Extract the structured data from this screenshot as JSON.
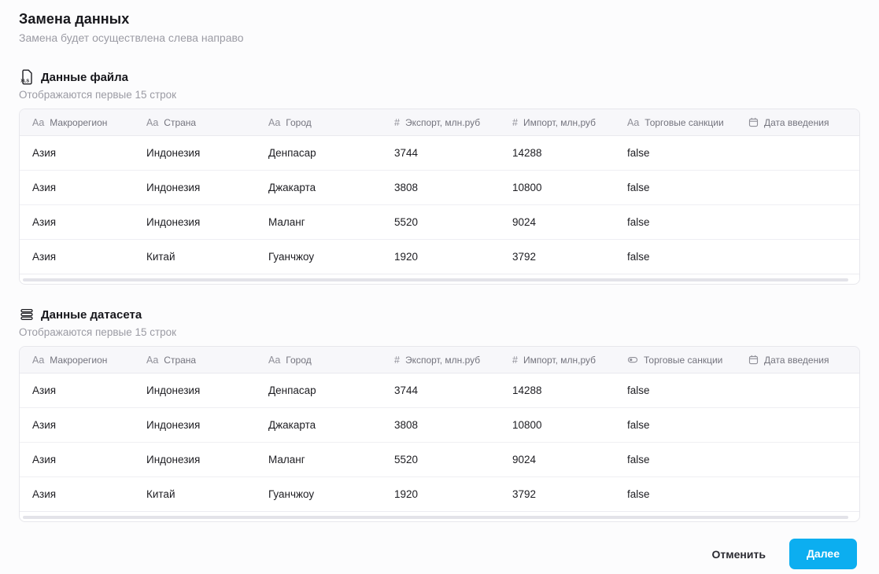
{
  "page": {
    "title": "Замена данных",
    "subtitle": "Замена будет осуществлена слева направо"
  },
  "file_section": {
    "icon": "xls-file-icon",
    "title": "Данные файла",
    "subtitle": "Отображаются первые 15 строк"
  },
  "dataset_section": {
    "icon": "dataset-stack-icon",
    "title": "Данные датасета",
    "subtitle": "Отображаются первые 15 строк"
  },
  "file_table": {
    "columns": [
      {
        "label": "Макрорегион",
        "type": "text",
        "icon": "text-type-icon"
      },
      {
        "label": "Страна",
        "type": "text",
        "icon": "text-type-icon"
      },
      {
        "label": "Город",
        "type": "text",
        "icon": "text-type-icon"
      },
      {
        "label": "Экспорт, млн.руб",
        "type": "number",
        "icon": "number-type-icon"
      },
      {
        "label": "Импорт, млн,руб",
        "type": "number",
        "icon": "number-type-icon"
      },
      {
        "label": "Торговые санкции",
        "type": "text",
        "icon": "text-type-icon"
      },
      {
        "label": "Дата введения",
        "type": "date",
        "icon": "calendar-icon"
      }
    ],
    "rows": [
      [
        "Азия",
        "Индонезия",
        "Денпасар",
        "3744",
        "14288",
        "false",
        ""
      ],
      [
        "Азия",
        "Индонезия",
        "Джакарта",
        "3808",
        "10800",
        "false",
        ""
      ],
      [
        "Азия",
        "Индонезия",
        "Маланг",
        "5520",
        "9024",
        "false",
        ""
      ],
      [
        "Азия",
        "Китай",
        "Гуанчжоу",
        "1920",
        "3792",
        "false",
        ""
      ]
    ]
  },
  "dataset_table": {
    "columns": [
      {
        "label": "Макрорегион",
        "type": "text",
        "icon": "text-type-icon"
      },
      {
        "label": "Страна",
        "type": "text",
        "icon": "text-type-icon"
      },
      {
        "label": "Город",
        "type": "text",
        "icon": "text-type-icon"
      },
      {
        "label": "Экспорт, млн.руб",
        "type": "number",
        "icon": "number-type-icon"
      },
      {
        "label": "Импорт, млн,руб",
        "type": "number",
        "icon": "number-type-icon"
      },
      {
        "label": "Торговые санкции",
        "type": "boolean",
        "icon": "toggle-icon"
      },
      {
        "label": "Дата введения",
        "type": "date",
        "icon": "calendar-icon"
      }
    ],
    "rows": [
      [
        "Азия",
        "Индонезия",
        "Денпасар",
        "3744",
        "14288",
        "false",
        ""
      ],
      [
        "Азия",
        "Индонезия",
        "Джакарта",
        "3808",
        "10800",
        "false",
        ""
      ],
      [
        "Азия",
        "Индонезия",
        "Маланг",
        "5520",
        "9024",
        "false",
        ""
      ],
      [
        "Азия",
        "Китай",
        "Гуанчжоу",
        "1920",
        "3792",
        "false",
        ""
      ]
    ]
  },
  "footer": {
    "cancel_label": "Отменить",
    "next_label": "Далее"
  },
  "colors": {
    "primary_button": "#0caef0",
    "header_bg": "#f7f7fa",
    "border": "#e7e7ec",
    "muted_text": "#9b9ba4"
  }
}
